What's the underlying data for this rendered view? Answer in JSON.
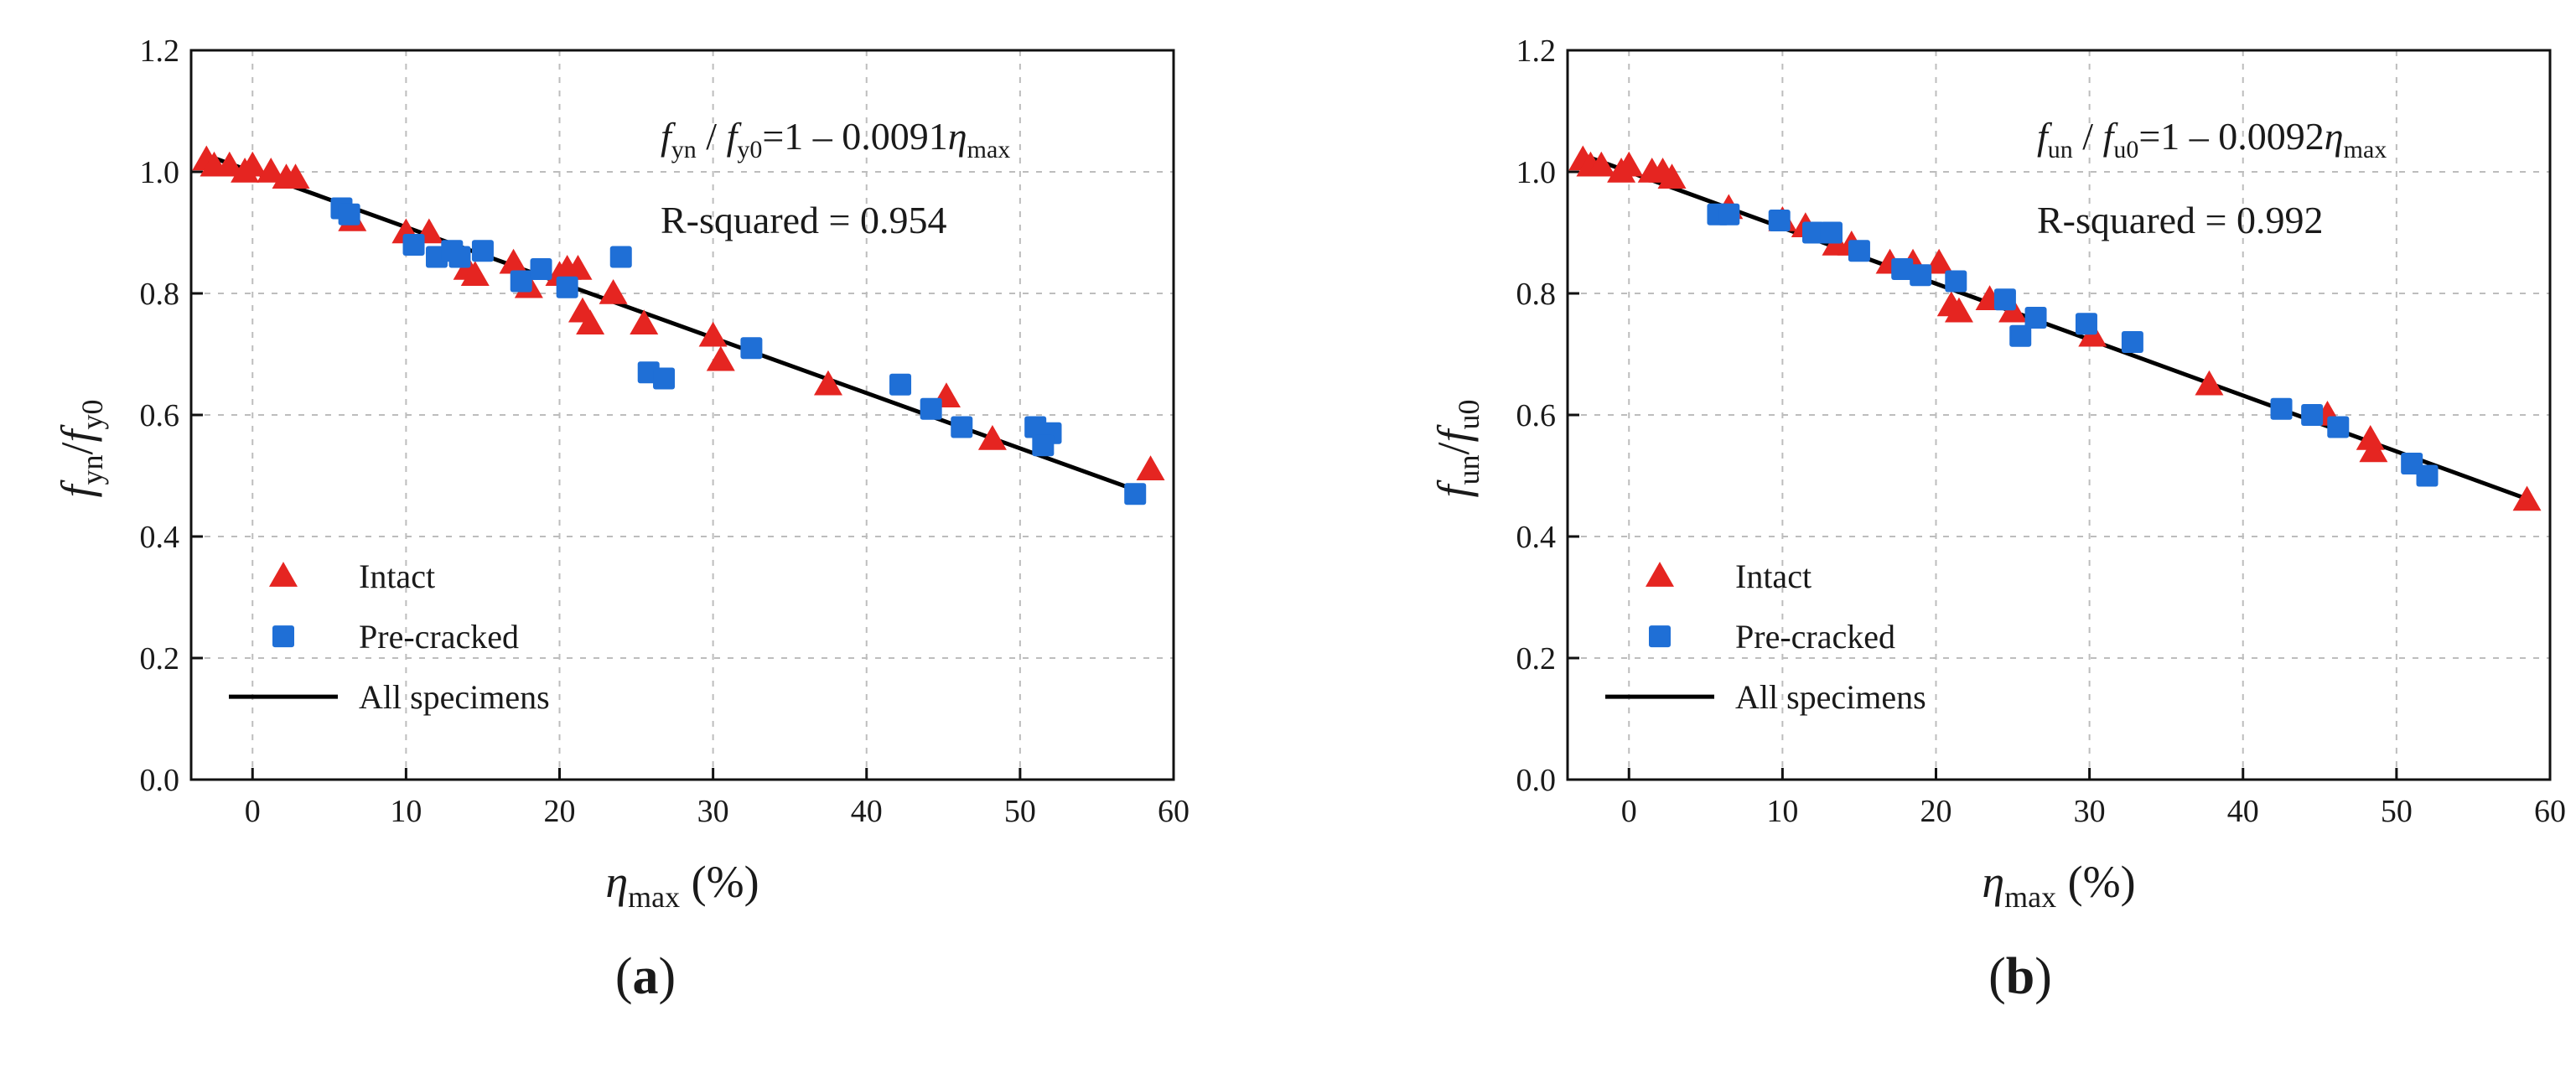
{
  "chart_data": [
    {
      "type": "scatter",
      "panel_label": {
        "open": "(",
        "letter": "a",
        "close": ")"
      },
      "xlim": [
        -4,
        60
      ],
      "ylim": [
        0.0,
        1.2
      ],
      "x_ticks": [
        0,
        10,
        20,
        30,
        40,
        50,
        60
      ],
      "y_ticks": [
        0.0,
        0.2,
        0.4,
        0.6,
        0.8,
        1.0,
        1.2
      ],
      "x_tick_labels": [
        "0",
        "10",
        "20",
        "30",
        "40",
        "50",
        "60"
      ],
      "y_tick_labels": [
        "0.0",
        "0.2",
        "0.4",
        "0.6",
        "0.8",
        "1.0",
        "1.2"
      ],
      "grid": true,
      "xlabel": {
        "symbol": "η",
        "sub": "max",
        "unit": " (%)"
      },
      "ylabel": {
        "f1": "f",
        "sub1": "yn",
        "slash": "/",
        "f2": "f",
        "sub2": "y0"
      },
      "equation": {
        "f1": "f",
        "sub1": "yn",
        "mid": " / ",
        "f2": "f",
        "sub2": "y0",
        "eq": "=1 – 0.0091",
        "eta": "η",
        "sub3": "max"
      },
      "r_squared": "R-squared = 0.954",
      "legend_position": "bottom-left",
      "fit": {
        "name": "All specimens",
        "slope": -0.0091,
        "intercept": 1.0,
        "x_range": [
          -3,
          58
        ]
      },
      "series": [
        {
          "name": "Intact",
          "marker": "triangle",
          "color": "#e52521",
          "points": [
            [
              -3,
              1.02
            ],
            [
              -2.5,
              1.01
            ],
            [
              -1.5,
              1.01
            ],
            [
              -0.5,
              1.0
            ],
            [
              0,
              1.01
            ],
            [
              1.2,
              1.0
            ],
            [
              2.2,
              0.99
            ],
            [
              2.8,
              0.99
            ],
            [
              6.5,
              0.92
            ],
            [
              10,
              0.9
            ],
            [
              11.5,
              0.9
            ],
            [
              14,
              0.84
            ],
            [
              14.5,
              0.83
            ],
            [
              17,
              0.85
            ],
            [
              18,
              0.81
            ],
            [
              20,
              0.83
            ],
            [
              20.5,
              0.84
            ],
            [
              21.2,
              0.84
            ],
            [
              21.5,
              0.77
            ],
            [
              22,
              0.75
            ],
            [
              23.5,
              0.8
            ],
            [
              25.5,
              0.75
            ],
            [
              30,
              0.73
            ],
            [
              30.5,
              0.69
            ],
            [
              37.5,
              0.65
            ],
            [
              45.2,
              0.63
            ],
            [
              48.2,
              0.56
            ],
            [
              58.5,
              0.51
            ]
          ]
        },
        {
          "name": "Pre-cracked",
          "marker": "square",
          "color": "#1f6fd6",
          "points": [
            [
              5.8,
              0.94
            ],
            [
              6.3,
              0.93
            ],
            [
              10.5,
              0.88
            ],
            [
              12,
              0.86
            ],
            [
              13,
              0.87
            ],
            [
              13.5,
              0.86
            ],
            [
              15,
              0.87
            ],
            [
              17.5,
              0.82
            ],
            [
              18.8,
              0.84
            ],
            [
              20.5,
              0.81
            ],
            [
              24,
              0.86
            ],
            [
              25.8,
              0.67
            ],
            [
              26.8,
              0.66
            ],
            [
              32.5,
              0.71
            ],
            [
              42.2,
              0.65
            ],
            [
              44.2,
              0.61
            ],
            [
              46.2,
              0.58
            ],
            [
              51,
              0.58
            ],
            [
              52,
              0.57
            ],
            [
              51.5,
              0.55
            ],
            [
              57.5,
              0.47
            ]
          ]
        }
      ]
    },
    {
      "type": "scatter",
      "panel_label": {
        "open": "(",
        "letter": "b",
        "close": ")"
      },
      "xlim": [
        -4,
        60
      ],
      "ylim": [
        0.0,
        1.2
      ],
      "x_ticks": [
        0,
        10,
        20,
        30,
        40,
        50,
        60
      ],
      "y_ticks": [
        0.0,
        0.2,
        0.4,
        0.6,
        0.8,
        1.0,
        1.2
      ],
      "x_tick_labels": [
        "0",
        "10",
        "20",
        "30",
        "40",
        "50",
        "60"
      ],
      "y_tick_labels": [
        "0.0",
        "0.2",
        "0.4",
        "0.6",
        "0.8",
        "1.0",
        "1.2"
      ],
      "grid": true,
      "xlabel": {
        "symbol": "η",
        "sub": "max",
        "unit": " (%)"
      },
      "ylabel": {
        "f1": "f",
        "sub1": "un",
        "slash": "/",
        "f2": "f",
        "sub2": "u0"
      },
      "equation": {
        "f1": "f",
        "sub1": "un",
        "mid": " / ",
        "f2": "f",
        "sub2": "u0",
        "eq": "=1 – 0.0092",
        "eta": "η",
        "sub3": "max"
      },
      "r_squared": "R-squared = 0.992",
      "legend_position": "bottom-left",
      "fit": {
        "name": "All specimens",
        "slope": -0.0092,
        "intercept": 1.0,
        "x_range": [
          -3,
          58.5
        ]
      },
      "series": [
        {
          "name": "Intact",
          "marker": "triangle",
          "color": "#e52521",
          "points": [
            [
              -3,
              1.02
            ],
            [
              -2.5,
              1.01
            ],
            [
              -1.8,
              1.01
            ],
            [
              -0.5,
              1.0
            ],
            [
              0,
              1.01
            ],
            [
              1.5,
              1.0
            ],
            [
              2.2,
              1.0
            ],
            [
              2.8,
              0.99
            ],
            [
              6.5,
              0.94
            ],
            [
              10,
              0.92
            ],
            [
              11.5,
              0.91
            ],
            [
              13.5,
              0.88
            ],
            [
              14.5,
              0.88
            ],
            [
              17,
              0.85
            ],
            [
              18.5,
              0.85
            ],
            [
              20.2,
              0.85
            ],
            [
              21,
              0.78
            ],
            [
              21.5,
              0.77
            ],
            [
              23.5,
              0.79
            ],
            [
              25,
              0.77
            ],
            [
              30.2,
              0.73
            ],
            [
              37.8,
              0.65
            ],
            [
              45.5,
              0.6
            ],
            [
              48.3,
              0.56
            ],
            [
              48.5,
              0.54
            ],
            [
              58.5,
              0.46
            ]
          ]
        },
        {
          "name": "Pre-cracked",
          "marker": "square",
          "color": "#1f6fd6",
          "points": [
            [
              5.8,
              0.93
            ],
            [
              6.5,
              0.93
            ],
            [
              9.8,
              0.92
            ],
            [
              12,
              0.9
            ],
            [
              13.2,
              0.9
            ],
            [
              15,
              0.87
            ],
            [
              17.8,
              0.84
            ],
            [
              19,
              0.83
            ],
            [
              21.3,
              0.82
            ],
            [
              24.5,
              0.79
            ],
            [
              25.5,
              0.73
            ],
            [
              26.5,
              0.76
            ],
            [
              29.8,
              0.75
            ],
            [
              32.8,
              0.72
            ],
            [
              42.5,
              0.61
            ],
            [
              44.5,
              0.6
            ],
            [
              46.2,
              0.58
            ],
            [
              51,
              0.52
            ],
            [
              52,
              0.5
            ]
          ]
        }
      ]
    }
  ]
}
